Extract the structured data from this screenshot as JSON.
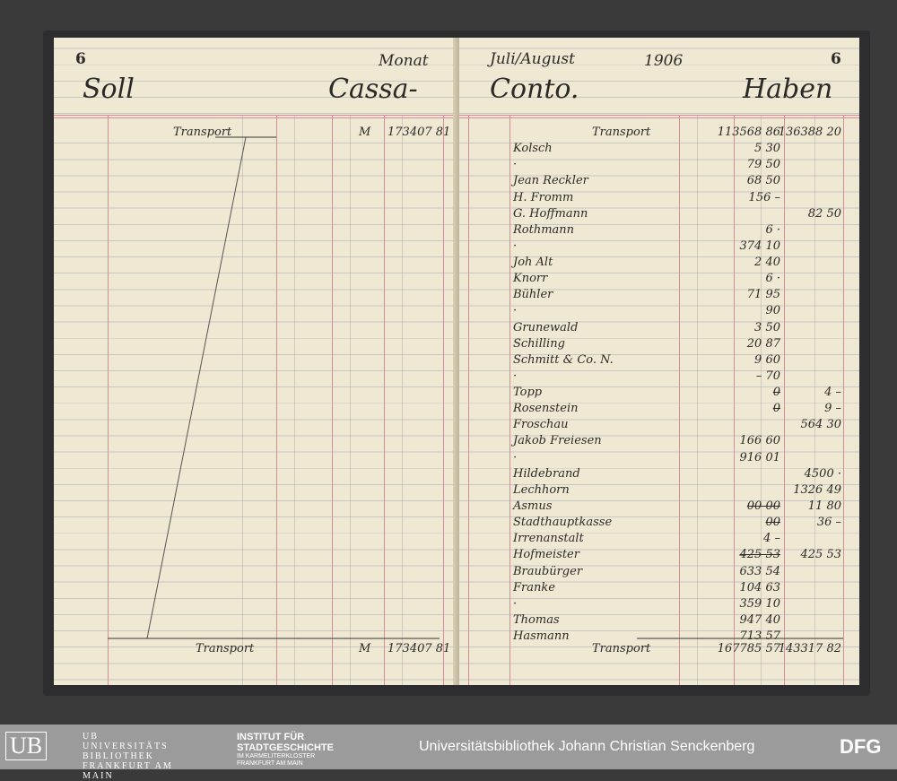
{
  "header": {
    "page_left": "6",
    "page_right": "6",
    "monat_label": "Monat",
    "monat_value": "Juli/August",
    "year": "1906",
    "soll": "Soll",
    "cassa": "Cassa-",
    "conto": "Conto.",
    "haben": "Haben"
  },
  "left_page": {
    "transport_top": {
      "label": "Transport",
      "currency": "M",
      "amount": "173407 81"
    },
    "transport_bottom": {
      "label": "Transport",
      "currency": "M",
      "amount": "173407 81"
    }
  },
  "right_page": {
    "rows": [
      {
        "name": "Transport",
        "debit": "113568 86",
        "credit": "136388 20"
      },
      {
        "name": "Kolsch",
        "debit": "5 30",
        "credit": ""
      },
      {
        "name": "·",
        "debit": "79 50",
        "credit": ""
      },
      {
        "name": "Jean Reckler",
        "debit": "68 50",
        "credit": ""
      },
      {
        "name": "H. Fromm",
        "debit": "156 –",
        "credit": ""
      },
      {
        "name": "G. Hoffmann",
        "debit": "",
        "credit": "82 50"
      },
      {
        "name": "Rothmann",
        "debit": "6 ·",
        "credit": ""
      },
      {
        "name": "·",
        "debit": "374 10",
        "credit": ""
      },
      {
        "name": "Joh Alt",
        "debit": "2 40",
        "credit": ""
      },
      {
        "name": "Knorr",
        "debit": "6 ·",
        "credit": ""
      },
      {
        "name": "Bühler",
        "debit": "71 95",
        "credit": ""
      },
      {
        "name": "·",
        "debit": "90",
        "credit": ""
      },
      {
        "name": "Grunewald",
        "debit": "3 50",
        "credit": ""
      },
      {
        "name": "Schilling",
        "debit": "20 87",
        "credit": ""
      },
      {
        "name": "Schmitt & Co. N.",
        "debit": "9 60",
        "credit": ""
      },
      {
        "name": "·",
        "debit": "– 70",
        "credit": ""
      },
      {
        "name": "Topp",
        "debit": "0",
        "debit_struck": true,
        "credit": "4 –"
      },
      {
        "name": "Rosenstein",
        "debit": "0",
        "debit_struck": true,
        "credit": "9 –"
      },
      {
        "name": "Froschau",
        "debit": "",
        "credit": "564 30"
      },
      {
        "name": "Jakob Freiesen",
        "debit": "166 60",
        "credit": ""
      },
      {
        "name": "·",
        "debit": "916 01",
        "credit": ""
      },
      {
        "name": "Hildebrand",
        "debit": "",
        "credit": "4500 ·"
      },
      {
        "name": "Lechhorn",
        "debit": "",
        "credit": "1326 49"
      },
      {
        "name": "Asmus",
        "debit": "00 00",
        "debit_struck": true,
        "credit": "11 80"
      },
      {
        "name": "Stadthauptkasse",
        "debit": "00",
        "debit_struck": true,
        "credit": "36 –"
      },
      {
        "name": "Irrenanstalt",
        "debit": "4 –",
        "credit": ""
      },
      {
        "name": "Hofmeister",
        "debit": "425 53",
        "debit_struck": true,
        "credit": "425 53"
      },
      {
        "name": "Braubürger",
        "debit": "633 54",
        "credit": ""
      },
      {
        "name": "Franke",
        "debit": "104 63",
        "credit": ""
      },
      {
        "name": "·",
        "debit": "359 10",
        "credit": ""
      },
      {
        "name": "Thomas",
        "debit": "947 40",
        "credit": ""
      },
      {
        "name": "Hasmann",
        "debit": "713 57",
        "credit": ""
      }
    ],
    "transport_bottom": {
      "label": "Transport",
      "debit": "167785 57",
      "credit": "143317 82"
    }
  },
  "footer": {
    "ub_logo": "UB UNIVERSITÄTS BIBLIOTHEK FRANKFURT AM MAIN",
    "isg_line1": "INSTITUT FÜR",
    "isg_line2": "STADTGESCHICHTE",
    "isg_line3": "IM KARMELITERKLOSTER",
    "isg_line4": "FRANKFURT AM MAIN",
    "center_text": "Universitätsbibliothek Johann Christian Senckenberg",
    "dfg_logo": "DFG"
  },
  "colors": {
    "paper": "#efe8d3",
    "ruling_red": "#d88a9a",
    "ink": "#2b2a28",
    "footer": "#9b9b9b"
  }
}
